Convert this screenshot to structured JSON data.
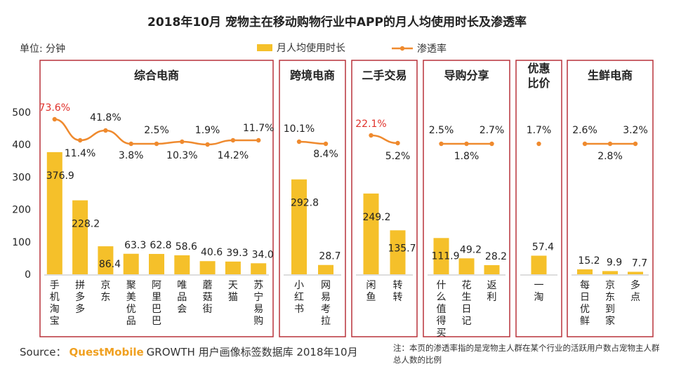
{
  "chart_data": {
    "type": "bar",
    "title": "2018年10月 宠物主在移动购物行业中APP的月人均使用时长及渗透率",
    "unit_label": "单位: 分钟",
    "legend": [
      {
        "label": "月人均使用时长",
        "kind": "bar",
        "color": "#f5c02a"
      },
      {
        "label": "渗透率",
        "kind": "line",
        "color": "#ef8a2e"
      }
    ],
    "ylim": [
      0,
      500
    ],
    "yticks": [
      0,
      100,
      200,
      300,
      400,
      500
    ],
    "groups": [
      {
        "name": "综合电商",
        "apps": [
          {
            "name": "手机淘宝",
            "minutes": 376.9,
            "minutes_label": "376.9",
            "penetration_label": "73.6%",
            "highlight": true
          },
          {
            "name": "拼多多",
            "minutes": 228.2,
            "minutes_label": "228.2",
            "penetration_label": "11.4%"
          },
          {
            "name": "京东",
            "minutes": 86.4,
            "minutes_label": "86.4",
            "penetration_label": "41.8%"
          },
          {
            "name": "聚美优品",
            "minutes": 63.3,
            "minutes_label": "63.3",
            "penetration_label": "3.8%"
          },
          {
            "name": "阿里巴巴",
            "minutes": 62.8,
            "minutes_label": "62.8",
            "penetration_label": "2.5%"
          },
          {
            "name": "唯品会",
            "minutes": 58.6,
            "minutes_label": "58.6",
            "penetration_label": "10.3%"
          },
          {
            "name": "蘑菇街",
            "minutes": 40.6,
            "minutes_label": "40.6",
            "penetration_label": "1.9%"
          },
          {
            "name": "天猫",
            "minutes": 39.3,
            "minutes_label": "39.3",
            "penetration_label": "14.2%"
          },
          {
            "name": "苏宁易购",
            "minutes": 34.0,
            "minutes_label": "34.0",
            "penetration_label": "11.7%"
          }
        ]
      },
      {
        "name": "跨境电商",
        "apps": [
          {
            "name": "小红书",
            "minutes": 292.8,
            "minutes_label": "292.8",
            "penetration_label": "10.1%"
          },
          {
            "name": "网易考拉",
            "minutes": 28.7,
            "minutes_label": "28.7",
            "penetration_label": "8.4%"
          }
        ]
      },
      {
        "name": "二手交易",
        "apps": [
          {
            "name": "闲鱼",
            "minutes": 249.2,
            "minutes_label": "249.2",
            "penetration_label": "22.1%",
            "highlight": true
          },
          {
            "name": "转转",
            "minutes": 135.7,
            "minutes_label": "135.7",
            "penetration_label": "5.2%"
          }
        ]
      },
      {
        "name": "导购分享",
        "apps": [
          {
            "name": "什么值得买",
            "minutes": 111.9,
            "minutes_label": "111.9",
            "penetration_label": "2.5%"
          },
          {
            "name": "花生日记",
            "minutes": 49.2,
            "minutes_label": "49.2",
            "penetration_label": "1.8%"
          },
          {
            "name": "返利",
            "minutes": 28.2,
            "minutes_label": "28.2",
            "penetration_label": "2.7%"
          }
        ]
      },
      {
        "name": "优惠比价",
        "apps": [
          {
            "name": "一淘",
            "minutes": 57.4,
            "minutes_label": "57.4",
            "penetration_label": "1.7%"
          }
        ]
      },
      {
        "name": "生鲜电商",
        "apps": [
          {
            "name": "每日优鲜",
            "minutes": 15.2,
            "minutes_label": "15.2",
            "penetration_label": "2.6%"
          },
          {
            "name": "京东到家",
            "minutes": 9.9,
            "minutes_label": "9.9",
            "penetration_label": "2.8%"
          },
          {
            "name": "多点",
            "minutes": 7.7,
            "minutes_label": "7.7",
            "penetration_label": "3.2%"
          }
        ]
      }
    ],
    "colors": {
      "bar": "#f5c02a",
      "line": "#ef8a2e",
      "frame": "#b8323a",
      "highlight": "#e0302a"
    }
  },
  "source": {
    "prefix": "Source：",
    "brand": "QuestMobile",
    "text": "GROWTH 用户画像标签数据库 2018年10月"
  },
  "note": "注：本页的渗透率指的是宠物主人群在某个行业的活跃用户数占宠物主人群总人数的比例"
}
